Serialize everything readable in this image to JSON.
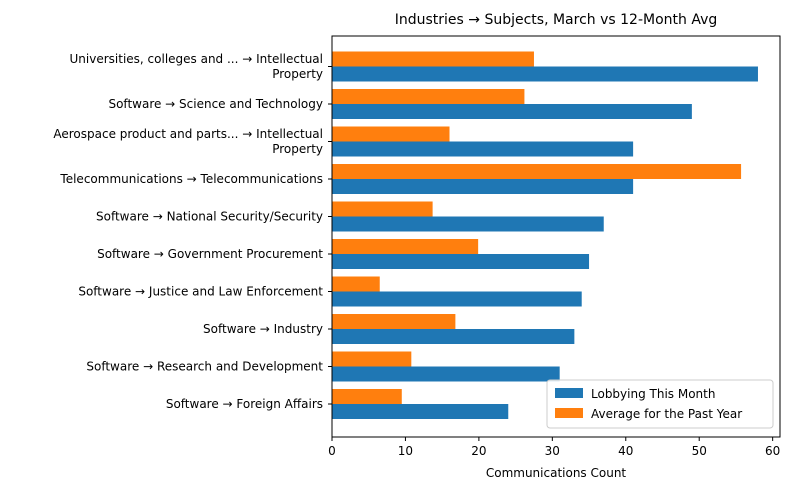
{
  "chart_data": {
    "type": "bar",
    "orientation": "horizontal",
    "title": "Industries → Subjects, March vs 12-Month Avg",
    "xlabel": "Communications Count",
    "ylabel": "",
    "xlim": [
      0,
      61
    ],
    "xticks": [
      0,
      10,
      20,
      30,
      40,
      50,
      60
    ],
    "grid": false,
    "legend_position": "lower-right",
    "categories": [
      [
        "Universities, colleges and ... → Intellectual",
        "Property"
      ],
      [
        "Software → Science and Technology"
      ],
      [
        "Aerospace product and parts... → Intellectual",
        "Property"
      ],
      [
        "Telecommunications → Telecommunications"
      ],
      [
        "Software → National Security/Security"
      ],
      [
        "Software → Government Procurement"
      ],
      [
        "Software → Justice and Law Enforcement"
      ],
      [
        "Software → Industry"
      ],
      [
        "Software → Research and Development"
      ],
      [
        "Software → Foreign Affairs"
      ]
    ],
    "series": [
      {
        "name": "Lobbying This Month",
        "color": "#1f77b4",
        "values": [
          58,
          49,
          41,
          41,
          37,
          35,
          34,
          33,
          31,
          24
        ]
      },
      {
        "name": "Average for the Past Year",
        "color": "#ff7f0e",
        "values": [
          27.5,
          26.2,
          16.0,
          55.7,
          13.7,
          19.9,
          6.5,
          16.8,
          10.8,
          9.5
        ]
      }
    ]
  }
}
